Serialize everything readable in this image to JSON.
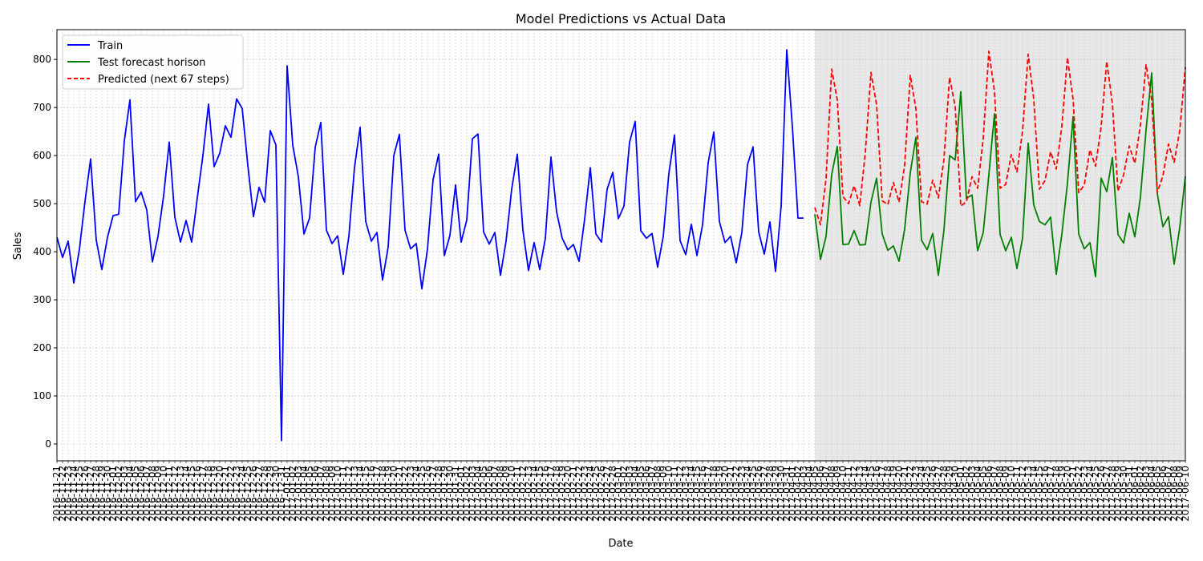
{
  "chart_data": {
    "type": "line",
    "title": "Model Predictions vs Actual Data",
    "xlabel": "Date",
    "ylabel": "Sales",
    "ylim": [
      -35,
      862
    ],
    "y_ticks": [
      0,
      100,
      200,
      300,
      400,
      500,
      600,
      700,
      800
    ],
    "grid": true,
    "legend": "top-left",
    "x_start": "2016-11-21",
    "x_end": "2017-06-10",
    "shaded_region": [
      "2017-04-05",
      "2017-06-10"
    ],
    "series": [
      {
        "name": "Train",
        "color": "#0000ff",
        "style": "solid",
        "start": "2016-11-21",
        "values": [
          430,
          388,
          422,
          335,
          405,
          505,
          593,
          424,
          363,
          430,
          475,
          478,
          630,
          716,
          504,
          524,
          487,
          379,
          432,
          516,
          628,
          472,
          420,
          465,
          420,
          512,
          600,
          707,
          577,
          605,
          662,
          638,
          718,
          698,
          580,
          473,
          534,
          503,
          652,
          622,
          7,
          787,
          622,
          556,
          437,
          470,
          617,
          669,
          445,
          417,
          433,
          353,
          432,
          575,
          659,
          463,
          422,
          440,
          341,
          410,
          600,
          644,
          445,
          406,
          417,
          323,
          405,
          550,
          603,
          392,
          434,
          539,
          420,
          466,
          635,
          645,
          441,
          416,
          440,
          351,
          422,
          530,
          603,
          445,
          361,
          419,
          363,
          428,
          597,
          483,
          428,
          404,
          415,
          380,
          468,
          575,
          437,
          420,
          530,
          565,
          469,
          495,
          628,
          671,
          444,
          428,
          438,
          368,
          432,
          563,
          643,
          423,
          394,
          457,
          392,
          456,
          585,
          649,
          463,
          419,
          432,
          377,
          440,
          581,
          618,
          441,
          395,
          462,
          359,
          496,
          820,
          660,
          470,
          470
        ]
      },
      {
        "name": "Test forecast horison",
        "color": "#008000",
        "style": "solid",
        "start": "2017-04-05",
        "values": [
          478,
          384,
          432,
          560,
          619,
          415,
          416,
          444,
          414,
          415,
          503,
          553,
          437,
          403,
          412,
          380,
          447,
          564,
          638,
          424,
          404,
          438,
          351,
          445,
          600,
          591,
          733,
          511,
          518,
          402,
          440,
          560,
          687,
          436,
          402,
          430,
          365,
          428,
          626,
          497,
          463,
          456,
          472,
          353,
          436,
          543,
          681,
          437,
          406,
          419,
          348,
          553,
          525,
          596,
          436,
          418,
          480,
          431,
          514,
          653,
          772,
          521,
          452,
          473,
          374,
          450,
          557
        ]
      },
      {
        "name": "Predicted (next 67 steps)",
        "color": "#ff0000",
        "style": "dashed",
        "start": "2017-04-05",
        "values": [
          492,
          456,
          552,
          780,
          716,
          515,
          500,
          537,
          496,
          607,
          773,
          706,
          506,
          498,
          544,
          503,
          580,
          767,
          698,
          504,
          499,
          549,
          512,
          592,
          763,
          702,
          495,
          504,
          556,
          532,
          636,
          817,
          733,
          532,
          540,
          602,
          566,
          651,
          811,
          717,
          530,
          548,
          608,
          572,
          661,
          804,
          717,
          523,
          539,
          612,
          578,
          660,
          796,
          708,
          526,
          560,
          620,
          584,
          665,
          789,
          716,
          523,
          558,
          624,
          586,
          652,
          784
        ]
      }
    ]
  }
}
